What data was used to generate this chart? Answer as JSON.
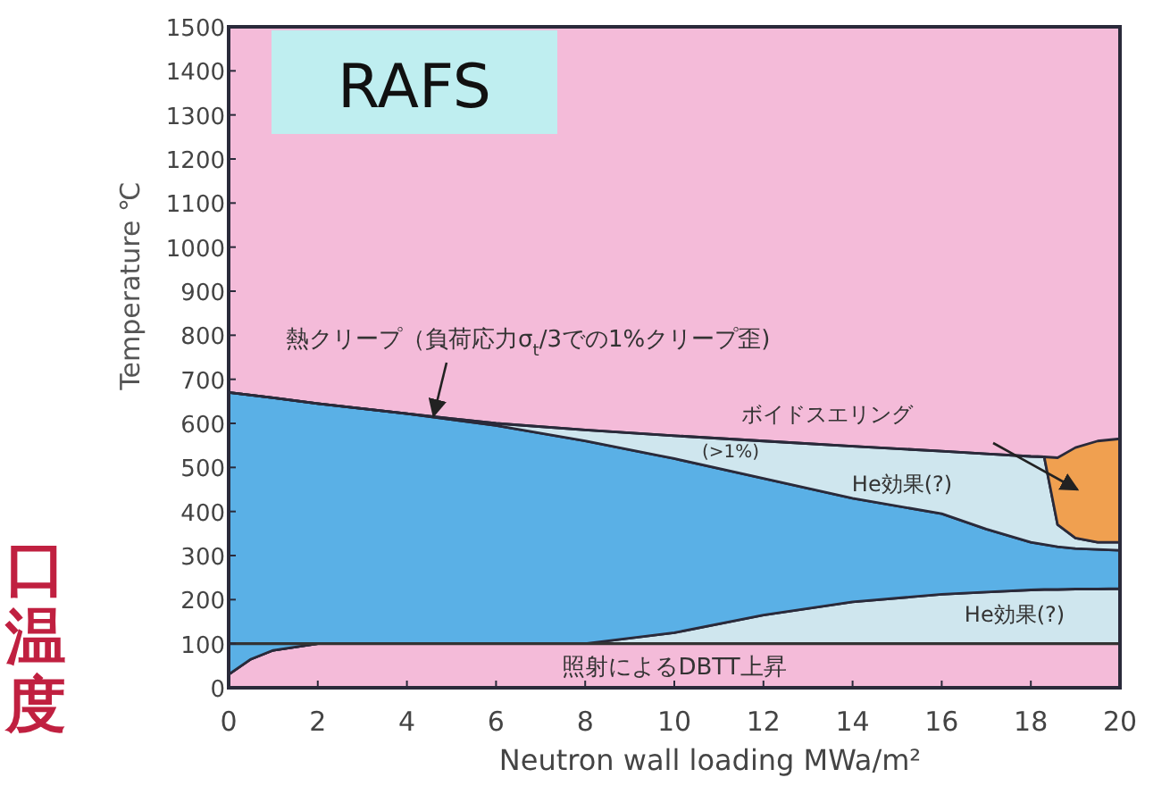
{
  "chart_data": {
    "type": "area",
    "stacked": true,
    "title": "RAFS",
    "xlabel": "Neutron wall loading   MWa/m²",
    "ylabel": "Temperature ℃",
    "xlim": [
      0,
      20
    ],
    "ylim": [
      0,
      1500
    ],
    "xticks": [
      0,
      2,
      4,
      6,
      8,
      10,
      12,
      14,
      16,
      18,
      20
    ],
    "yticks": [
      0,
      100,
      200,
      300,
      400,
      500,
      600,
      700,
      800,
      900,
      1000,
      1100,
      1200,
      1300,
      1400,
      1500
    ],
    "grid": false,
    "ref_lines": [
      {
        "axis": "y",
        "value": 100,
        "label": "照射によるDBTT上昇",
        "color": "#333333"
      }
    ],
    "x": [
      0,
      0.5,
      1,
      2,
      4,
      6,
      8,
      10,
      12,
      14,
      16,
      17,
      18,
      18.3,
      18.6,
      19,
      19.5,
      20
    ],
    "series": [
      {
        "color": "#f4bbd9",
        "values": [
          30,
          65,
          85,
          100,
          100,
          100,
          100,
          100,
          100,
          100,
          100,
          100,
          100,
          100,
          100,
          100,
          100,
          100
        ]
      },
      {
        "color": "#cfe6ee",
        "values": [
          0,
          0,
          0,
          0,
          0,
          0,
          0,
          25,
          65,
          95,
          112,
          117,
          122,
          123,
          123,
          124,
          124,
          125
        ]
      },
      {
        "color": "#5ab0e6",
        "values": [
          640,
          599,
          573,
          545,
          522,
          495,
          460,
          395,
          310,
          235,
          183,
          143,
          108,
          102,
          97,
          92,
          90,
          87
        ]
      },
      {
        "color": "#cfe6ee",
        "values": [
          0,
          0,
          0,
          0,
          0,
          5,
          25,
          52,
          85,
          118,
          142,
          171,
          195,
          199,
          50,
          24,
          16,
          18
        ]
      },
      {
        "color": "#f0a050",
        "values": [
          0,
          0,
          0,
          0,
          0,
          0,
          0,
          0,
          0,
          0,
          0,
          0,
          0,
          0,
          152,
          205,
          230,
          235
        ]
      }
    ],
    "annotations": [
      {
        "text": "熱クリープ（負荷応力σ$_{t}$/3での1%クリープ歪)",
        "x": 4.6,
        "y": 618
      },
      "ボイドスエリング",
      "(>1%)",
      "He効果(?)",
      "He効果(?)",
      "口温度"
    ]
  }
}
